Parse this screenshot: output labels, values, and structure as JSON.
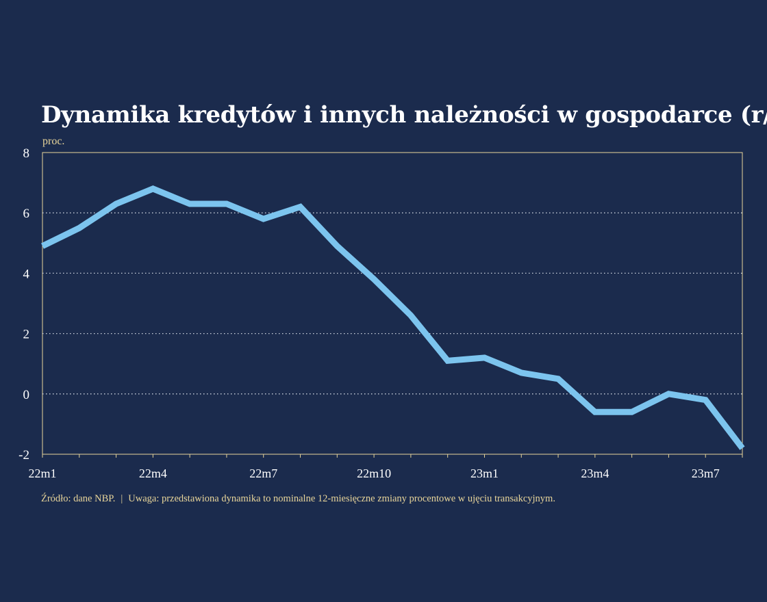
{
  "title": "Dynamika kredytów i innych należności w gospodarce (r/r)",
  "unit": "proc.",
  "footnote": {
    "source": "Źródło: dane NBP.",
    "separator": "|",
    "note": "Uwaga: przedstawiona dynamika to nominalne 12-miesięczne zmiany procentowe w ujęciu transakcyjnym."
  },
  "colors": {
    "background": "#1b2b4d",
    "line": "#7cc4ee",
    "axis": "#e8d59a",
    "grid": "#cfd5df",
    "text": "#ffffff",
    "note": "#e8d59a"
  },
  "chart_data": {
    "type": "line",
    "categories": [
      "22m1",
      "22m2",
      "22m3",
      "22m4",
      "22m5",
      "22m6",
      "22m7",
      "22m8",
      "22m9",
      "22m10",
      "22m11",
      "22m12",
      "23m1",
      "23m2",
      "23m3",
      "23m4",
      "23m5",
      "23m6",
      "23m7",
      "23m8"
    ],
    "tick_labels": [
      "22m1",
      "",
      "",
      "22m4",
      "",
      "",
      "22m7",
      "",
      "",
      "22m10",
      "",
      "",
      "23m1",
      "",
      "",
      "23m4",
      "",
      "",
      "23m7",
      ""
    ],
    "series": [
      {
        "values": [
          4.9,
          5.5,
          6.3,
          6.8,
          6.3,
          6.3,
          5.8,
          6.2,
          4.9,
          3.8,
          2.6,
          1.1,
          1.2,
          0.7,
          0.5,
          -0.6,
          -0.6,
          0.0,
          -0.2,
          -1.8
        ]
      }
    ],
    "yticks": [
      -2,
      0,
      2,
      4,
      6,
      8
    ],
    "ylim": [
      -2,
      8
    ],
    "grid": "horizontal dotted"
  }
}
